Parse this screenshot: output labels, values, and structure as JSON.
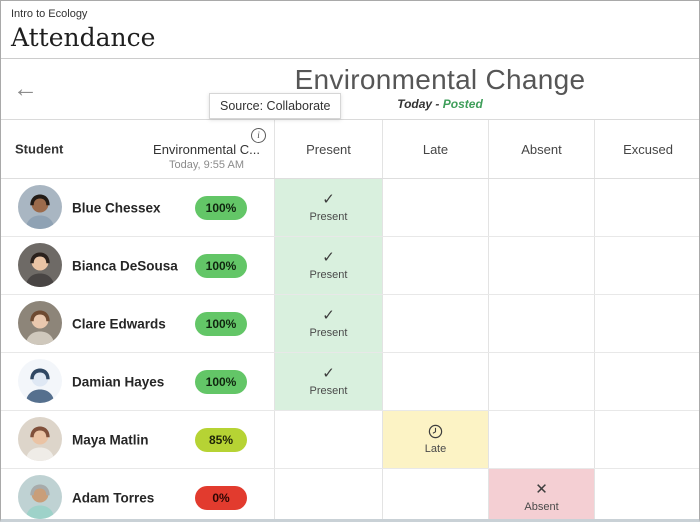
{
  "header": {
    "course_label": "Intro to Ecology",
    "page_title": "Attendance"
  },
  "meeting_bar": {
    "back_icon": "←",
    "title": "Environmental Change",
    "date_text": "Today -",
    "posted_text": "Posted",
    "tooltip_text": "Source: Collaborate"
  },
  "table": {
    "columns": {
      "student": "Student",
      "info_icon": "i",
      "meeting_title": "Environmental C...",
      "meeting_subtitle": "Today, 9:55 AM",
      "statuses": [
        "Present",
        "Late",
        "Absent",
        "Excused"
      ]
    },
    "status_markers": {
      "Present": {
        "icon": "✓",
        "icon_name": "check-icon"
      },
      "Late": {
        "icon": "clock",
        "icon_name": "clock-icon"
      },
      "Absent": {
        "icon": "✕",
        "icon_name": "x-icon"
      }
    },
    "rows": [
      {
        "name": "Blue Chessex",
        "score": "100%",
        "score_color": "#63c667",
        "score_text_color": "#10250f",
        "status": "Present",
        "avatar": {
          "bg": "#a9b6c2",
          "skin": "#9c6b4c",
          "hair": "#221b16",
          "shirt": "#8fa2b4"
        }
      },
      {
        "name": "Bianca DeSousa",
        "score": "100%",
        "score_color": "#63c667",
        "score_text_color": "#10250f",
        "status": "Present",
        "avatar": {
          "bg": "#6e6a66",
          "skin": "#eac4a5",
          "hair": "#2a211c",
          "shirt": "#494544"
        }
      },
      {
        "name": "Clare Edwards",
        "score": "100%",
        "score_color": "#63c667",
        "score_text_color": "#10250f",
        "status": "Present",
        "avatar": {
          "bg": "#8d8579",
          "skin": "#eac8ae",
          "hair": "#6e4a31",
          "shirt": "#cfc8bc"
        }
      },
      {
        "name": "Damian Hayes",
        "score": "100%",
        "score_color": "#63c667",
        "score_text_color": "#10250f",
        "status": "Present",
        "avatar": {
          "bg": "#f3f6fa",
          "skin": "#dfe8f4",
          "hair": "#2f4763",
          "shirt": "#56708e"
        }
      },
      {
        "name": "Maya Matlin",
        "score": "85%",
        "score_color": "#b6d334",
        "score_text_color": "#1f2408",
        "status": "Late",
        "avatar": {
          "bg": "#ddd5ca",
          "skin": "#eac3a4",
          "hair": "#80503a",
          "shirt": "#efece7"
        }
      },
      {
        "name": "Adam Torres",
        "score": "0%",
        "score_color": "#e23b2e",
        "score_text_color": "#2c0603",
        "status": "Absent",
        "avatar": {
          "bg": "#bfd2d3",
          "skin": "#c99e79",
          "hair": "#a7abab",
          "shirt": "#9ed2c9"
        }
      }
    ]
  },
  "colors": {
    "present_bg": "#d9f0de",
    "late_bg": "#fcf3c5",
    "absent_bg": "#f4cfd3",
    "posted_green": "#3f9e5a"
  }
}
